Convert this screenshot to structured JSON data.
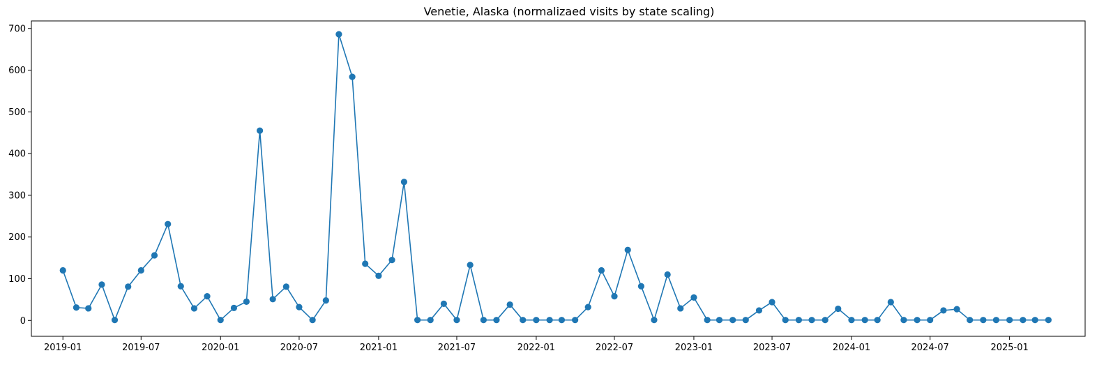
{
  "chart_data": {
    "type": "line",
    "title": "Venetie, Alaska (normalizaed visits by state scaling)",
    "xlabel": "",
    "ylabel": "",
    "color": "#1f77b4",
    "markers": true,
    "ylim": [
      -38,
      718
    ],
    "yticks": [
      0,
      100,
      200,
      300,
      400,
      500,
      600,
      700
    ],
    "xlim": [
      "2018-10-20",
      "2025-06-25"
    ],
    "xticks": [
      "2019-01",
      "2019-07",
      "2020-01",
      "2020-07",
      "2021-01",
      "2021-07",
      "2022-01",
      "2022-07",
      "2023-01",
      "2023-07",
      "2024-01",
      "2024-07",
      "2025-01"
    ],
    "x": [
      "2019-01-01",
      "2019-02-01",
      "2019-03-01",
      "2019-04-01",
      "2019-05-01",
      "2019-06-01",
      "2019-07-01",
      "2019-08-01",
      "2019-09-01",
      "2019-10-01",
      "2019-11-01",
      "2019-12-01",
      "2020-01-01",
      "2020-02-01",
      "2020-03-01",
      "2020-04-01",
      "2020-05-01",
      "2020-06-01",
      "2020-07-01",
      "2020-08-01",
      "2020-09-01",
      "2020-10-01",
      "2020-11-01",
      "2020-12-01",
      "2021-01-01",
      "2021-02-01",
      "2021-03-01",
      "2021-04-01",
      "2021-05-01",
      "2021-06-01",
      "2021-07-01",
      "2021-08-01",
      "2021-09-01",
      "2021-10-01",
      "2021-11-01",
      "2021-12-01",
      "2022-01-01",
      "2022-02-01",
      "2022-03-01",
      "2022-04-01",
      "2022-05-01",
      "2022-06-01",
      "2022-07-01",
      "2022-08-01",
      "2022-09-01",
      "2022-10-01",
      "2022-11-01",
      "2022-12-01",
      "2023-01-01",
      "2023-02-01",
      "2023-03-01",
      "2023-04-01",
      "2023-05-01",
      "2023-06-01",
      "2023-07-01",
      "2023-08-01",
      "2023-09-01",
      "2023-10-01",
      "2023-11-01",
      "2023-12-01",
      "2024-01-01",
      "2024-02-01",
      "2024-03-01",
      "2024-04-01",
      "2024-05-01",
      "2024-06-01",
      "2024-07-01",
      "2024-08-01",
      "2024-09-01",
      "2024-10-01",
      "2024-11-01",
      "2024-12-01",
      "2025-01-01",
      "2025-02-01",
      "2025-03-01",
      "2025-04-01"
    ],
    "series": [
      {
        "values": [
          120,
          31,
          29,
          86,
          1,
          81,
          120,
          156,
          231,
          82,
          29,
          58,
          1,
          30,
          45,
          455,
          51,
          81,
          32,
          1,
          48,
          686,
          584,
          136,
          107,
          145,
          332,
          1,
          1,
          40,
          1,
          133,
          1,
          1,
          38,
          1,
          1,
          1,
          1,
          1,
          32,
          120,
          58,
          169,
          82,
          1,
          110,
          29,
          55,
          1,
          1,
          1,
          1,
          24,
          44,
          1,
          1,
          1,
          1,
          28,
          1,
          1,
          1,
          44,
          1,
          1,
          1,
          24,
          27,
          1,
          1,
          1,
          1,
          1,
          1,
          1
        ]
      }
    ]
  }
}
